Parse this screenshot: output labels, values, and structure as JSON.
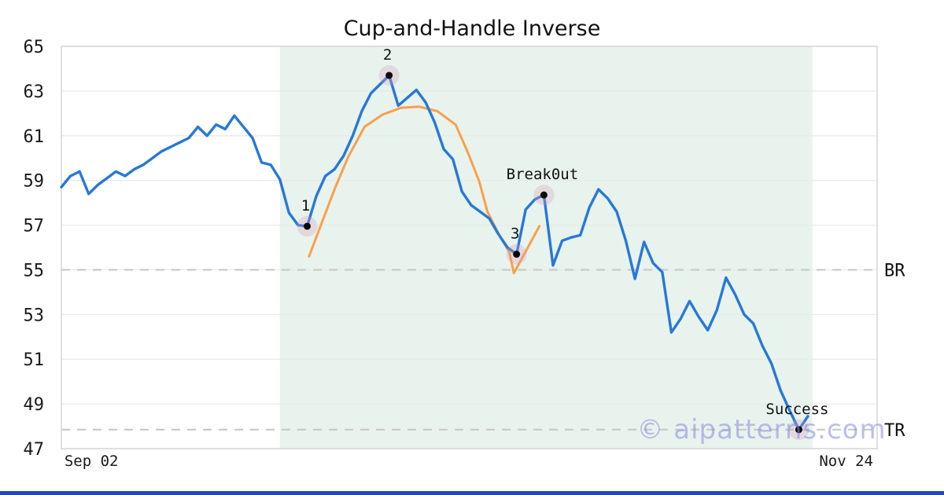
{
  "page": {
    "watermark": "© aipatterns.com"
  },
  "chart_data": {
    "type": "line",
    "title": "Cup-and-Handle Inverse",
    "x_axis": {
      "domain": [
        0,
        89.6
      ],
      "ticks": [
        {
          "label": "Sep 02",
          "pos": 3.3
        },
        {
          "label": "Nov 24",
          "pos": 86.2
        }
      ]
    },
    "y_axis": {
      "range": [
        47,
        65
      ],
      "ticks": [
        47,
        49,
        51,
        53,
        55,
        57,
        59,
        61,
        63,
        65
      ]
    },
    "grid": {
      "color": "#e8e8e8",
      "border_color": "#d6d6d6"
    },
    "shaded_region": {
      "x0": 24,
      "x1": 82.5,
      "color": "#e8f3ee"
    },
    "level_lines": [
      {
        "label": "BR",
        "y": 55.0
      },
      {
        "label": "TR",
        "y": 47.85
      }
    ],
    "level_line_color": "#c8c8c8",
    "series": [
      {
        "name": "price",
        "color": "#2878d8",
        "width": 3.4,
        "x_step": 1,
        "values": [
          58.7,
          59.2,
          59.4,
          58.4,
          58.8,
          59.1,
          59.4,
          59.2,
          59.5,
          59.7,
          60.0,
          60.3,
          60.5,
          60.7,
          60.9,
          61.4,
          61.0,
          61.5,
          61.3,
          61.9,
          61.4,
          60.9,
          59.8,
          59.7,
          59.05,
          57.55,
          57.0,
          56.95,
          58.3,
          59.2,
          59.5,
          60.1,
          61.0,
          62.1,
          62.9,
          63.3,
          63.7,
          62.35,
          62.7,
          63.05,
          62.5,
          61.6,
          60.4,
          59.95,
          58.5,
          57.9,
          57.6,
          57.3,
          56.6,
          56.0,
          55.7,
          57.7,
          58.15,
          58.35,
          55.2,
          56.3,
          56.45,
          56.55,
          57.8,
          58.6,
          58.2,
          57.6,
          56.3,
          54.6,
          56.25,
          55.3,
          54.9,
          52.2,
          52.8,
          53.6,
          52.9,
          52.3,
          53.2,
          54.65,
          53.9,
          53.0,
          52.6,
          51.6,
          50.8,
          49.6,
          48.7,
          47.85,
          48.45
        ]
      },
      {
        "name": "cup-and-handle-overlay",
        "color": "#f9a04a",
        "width": 3.0,
        "points": [
          [
            27.2,
            55.6
          ],
          [
            28.6,
            57.1
          ],
          [
            30.0,
            58.6
          ],
          [
            31.5,
            60.05
          ],
          [
            33.3,
            61.4
          ],
          [
            35.3,
            61.95
          ],
          [
            37.3,
            62.25
          ],
          [
            39.3,
            62.3
          ],
          [
            41.3,
            62.1
          ],
          [
            43.3,
            61.5
          ],
          [
            44.7,
            60.2
          ],
          [
            45.9,
            58.95
          ],
          [
            46.8,
            57.6
          ],
          [
            48.3,
            56.4
          ],
          [
            49.2,
            55.8
          ],
          [
            49.7,
            54.85
          ],
          [
            52.5,
            56.95
          ]
        ]
      }
    ],
    "markers": [
      {
        "label": "1",
        "x": 27,
        "y": 56.95
      },
      {
        "label": "2",
        "x": 36,
        "y": 63.7
      },
      {
        "label": "3",
        "x": 50,
        "y": 55.7
      },
      {
        "label": "Break0ut",
        "x": 53,
        "y": 58.35
      },
      {
        "label": "Success",
        "x": 81,
        "y": 47.85
      }
    ],
    "marker_style": {
      "halo_color": "rgba(213,154,181,0.3)",
      "dot_color": "#0a0a0a"
    }
  },
  "footer": {
    "bar_color": "#2247b0"
  }
}
